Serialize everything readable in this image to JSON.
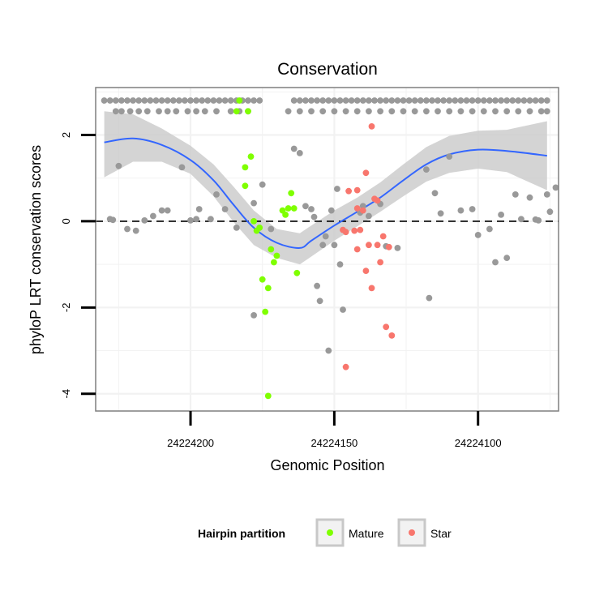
{
  "chart_data": {
    "type": "scatter",
    "title": "Conservation",
    "xlabel": "Genomic Position",
    "ylabel": "phyloP LRT conservation scores",
    "x_reversed": true,
    "xlim": [
      24224233,
      24224072
    ],
    "ylim": [
      -4.4,
      3.1
    ],
    "x_ticks": [
      24224200,
      24224150,
      24224100
    ],
    "x_tick_labels": [
      "24224200",
      "24224150",
      "24224100"
    ],
    "y_ticks": [
      -4,
      -2,
      0,
      2
    ],
    "y_tick_labels": [
      "-4",
      "-2",
      "0",
      "2"
    ],
    "reference_line": {
      "y": 0,
      "style": "dashed"
    },
    "grid": true,
    "legend": {
      "title": "Hairpin partition",
      "position": "bottom",
      "entries": [
        {
          "label": "Mature",
          "color": "#7FFF00"
        },
        {
          "label": "Star",
          "color": "#F8766D"
        }
      ]
    },
    "colors": {
      "other": "#999999",
      "smooth": "#3366FF",
      "ribbon": "#CCCCCC"
    },
    "series": [
      {
        "group": "other",
        "color": "#999999",
        "points": [
          [
            24224230,
            2.8
          ],
          [
            24224228,
            2.8
          ],
          [
            24224226,
            2.8
          ],
          [
            24224224,
            2.8
          ],
          [
            24224222,
            2.8
          ],
          [
            24224220,
            2.8
          ],
          [
            24224218,
            2.8
          ],
          [
            24224216,
            2.8
          ],
          [
            24224214,
            2.8
          ],
          [
            24224212,
            2.8
          ],
          [
            24224210,
            2.8
          ],
          [
            24224208,
            2.8
          ],
          [
            24224206,
            2.8
          ],
          [
            24224204,
            2.8
          ],
          [
            24224202,
            2.8
          ],
          [
            24224200,
            2.8
          ],
          [
            24224198,
            2.8
          ],
          [
            24224196,
            2.8
          ],
          [
            24224194,
            2.8
          ],
          [
            24224192,
            2.8
          ],
          [
            24224190,
            2.8
          ],
          [
            24224188,
            2.8
          ],
          [
            24224186,
            2.8
          ],
          [
            24224184,
            2.8
          ],
          [
            24224182,
            2.8
          ],
          [
            24224180,
            2.8
          ],
          [
            24224178,
            2.8
          ],
          [
            24224176,
            2.8
          ],
          [
            24224226,
            2.55
          ],
          [
            24224224,
            2.55
          ],
          [
            24224221,
            2.55
          ],
          [
            24224218,
            2.55
          ],
          [
            24224215,
            2.55
          ],
          [
            24224211,
            2.55
          ],
          [
            24224208,
            2.55
          ],
          [
            24224205,
            2.55
          ],
          [
            24224201,
            2.55
          ],
          [
            24224198,
            2.55
          ],
          [
            24224195,
            2.55
          ],
          [
            24224191,
            2.55
          ],
          [
            24224186,
            2.55
          ],
          [
            24224183,
            2.55
          ],
          [
            24224180,
            2.55
          ],
          [
            24224164,
            2.8
          ],
          [
            24224162,
            2.8
          ],
          [
            24224160,
            2.8
          ],
          [
            24224158,
            2.8
          ],
          [
            24224156,
            2.8
          ],
          [
            24224154,
            2.8
          ],
          [
            24224152,
            2.8
          ],
          [
            24224150,
            2.8
          ],
          [
            24224148,
            2.8
          ],
          [
            24224146,
            2.8
          ],
          [
            24224144,
            2.8
          ],
          [
            24224142,
            2.8
          ],
          [
            24224140,
            2.8
          ],
          [
            24224138,
            2.8
          ],
          [
            24224136,
            2.8
          ],
          [
            24224134,
            2.8
          ],
          [
            24224132,
            2.8
          ],
          [
            24224130,
            2.8
          ],
          [
            24224128,
            2.8
          ],
          [
            24224126,
            2.8
          ],
          [
            24224124,
            2.8
          ],
          [
            24224122,
            2.8
          ],
          [
            24224120,
            2.8
          ],
          [
            24224118,
            2.8
          ],
          [
            24224116,
            2.8
          ],
          [
            24224114,
            2.8
          ],
          [
            24224112,
            2.8
          ],
          [
            24224110,
            2.8
          ],
          [
            24224108,
            2.8
          ],
          [
            24224106,
            2.8
          ],
          [
            24224104,
            2.8
          ],
          [
            24224102,
            2.8
          ],
          [
            24224100,
            2.8
          ],
          [
            24224098,
            2.8
          ],
          [
            24224096,
            2.8
          ],
          [
            24224094,
            2.8
          ],
          [
            24224092,
            2.8
          ],
          [
            24224090,
            2.8
          ],
          [
            24224088,
            2.8
          ],
          [
            24224086,
            2.8
          ],
          [
            24224084,
            2.8
          ],
          [
            24224082,
            2.8
          ],
          [
            24224080,
            2.8
          ],
          [
            24224078,
            2.8
          ],
          [
            24224076,
            2.8
          ],
          [
            24224166,
            2.55
          ],
          [
            24224162,
            2.55
          ],
          [
            24224158,
            2.55
          ],
          [
            24224154,
            2.55
          ],
          [
            24224150,
            2.55
          ],
          [
            24224146,
            2.55
          ],
          [
            24224142,
            2.55
          ],
          [
            24224138,
            2.55
          ],
          [
            24224134,
            2.55
          ],
          [
            24224130,
            2.55
          ],
          [
            24224126,
            2.55
          ],
          [
            24224122,
            2.55
          ],
          [
            24224118,
            2.55
          ],
          [
            24224114,
            2.55
          ],
          [
            24224110,
            2.55
          ],
          [
            24224106,
            2.55
          ],
          [
            24224102,
            2.55
          ],
          [
            24224098,
            2.55
          ],
          [
            24224094,
            2.55
          ],
          [
            24224090,
            2.55
          ],
          [
            24224086,
            2.55
          ],
          [
            24224082,
            2.55
          ],
          [
            24224078,
            2.55
          ],
          [
            24224076,
            2.55
          ],
          [
            24224228,
            0.05
          ],
          [
            24224227,
            0.03
          ],
          [
            24224225,
            1.28
          ],
          [
            24224222,
            -0.18
          ],
          [
            24224219,
            -0.22
          ],
          [
            24224216,
            0.02
          ],
          [
            24224213,
            0.12
          ],
          [
            24224210,
            0.25
          ],
          [
            24224208,
            0.25
          ],
          [
            24224203,
            1.25
          ],
          [
            24224200,
            0.02
          ],
          [
            24224198,
            0.05
          ],
          [
            24224197,
            0.28
          ],
          [
            24224193,
            0.05
          ],
          [
            24224191,
            0.62
          ],
          [
            24224188,
            0.28
          ],
          [
            24224184,
            -0.15
          ],
          [
            24224178,
            0.42
          ],
          [
            24224175,
            0.85
          ],
          [
            24224164,
            1.68
          ],
          [
            24224162,
            1.58
          ],
          [
            24224160,
            0.35
          ],
          [
            24224158,
            0.28
          ],
          [
            24224157,
            0.1
          ],
          [
            24224156,
            -1.5
          ],
          [
            24224155,
            -1.85
          ],
          [
            24224154,
            -0.55
          ],
          [
            24224153,
            -0.35
          ],
          [
            24224152,
            -3.0
          ],
          [
            24224151,
            0.25
          ],
          [
            24224150,
            -0.55
          ],
          [
            24224149,
            0.75
          ],
          [
            24224148,
            -1.0
          ],
          [
            24224147,
            -2.05
          ],
          [
            24224141,
            0.2
          ],
          [
            24224140,
            0.35
          ],
          [
            24224138,
            0.12
          ],
          [
            24224134,
            0.4
          ],
          [
            24224132,
            -0.58
          ],
          [
            24224128,
            -0.62
          ],
          [
            24224118,
            1.2
          ],
          [
            24224117,
            -1.78
          ],
          [
            24224115,
            0.65
          ],
          [
            24224113,
            0.18
          ],
          [
            24224110,
            1.5
          ],
          [
            24224106,
            0.25
          ],
          [
            24224102,
            0.28
          ],
          [
            24224100,
            -0.32
          ],
          [
            24224096,
            -0.18
          ],
          [
            24224094,
            -0.95
          ],
          [
            24224092,
            0.15
          ],
          [
            24224090,
            -0.85
          ],
          [
            24224087,
            0.62
          ],
          [
            24224085,
            0.05
          ],
          [
            24224082,
            0.55
          ],
          [
            24224080,
            0.04
          ],
          [
            24224079,
            0.02
          ],
          [
            24224076,
            0.62
          ],
          [
            24224075,
            0.22
          ],
          [
            24224073,
            0.78
          ],
          [
            24224178,
            -2.18
          ],
          [
            24224172,
            -0.18
          ]
        ]
      },
      {
        "group": "Mature",
        "color": "#7FFF00",
        "points": [
          [
            24224183,
            2.8
          ],
          [
            24224184,
            2.55
          ],
          [
            24224180,
            2.55
          ],
          [
            24224181,
            1.25
          ],
          [
            24224179,
            1.5
          ],
          [
            24224181,
            0.82
          ],
          [
            24224178,
            0.0
          ],
          [
            24224177,
            -0.22
          ],
          [
            24224176,
            -0.15
          ],
          [
            24224175,
            -1.35
          ],
          [
            24224173,
            -1.55
          ],
          [
            24224172,
            -0.65
          ],
          [
            24224171,
            -0.95
          ],
          [
            24224170,
            -0.8
          ],
          [
            24224168,
            0.25
          ],
          [
            24224167,
            0.15
          ],
          [
            24224166,
            0.3
          ],
          [
            24224165,
            0.65
          ],
          [
            24224164,
            0.3
          ],
          [
            24224163,
            -1.2
          ],
          [
            24224174,
            -2.1
          ],
          [
            24224173,
            -4.05
          ]
        ]
      },
      {
        "group": "Star",
        "color": "#F8766D",
        "points": [
          [
            24224137,
            2.2
          ],
          [
            24224139,
            1.12
          ],
          [
            24224136,
            0.52
          ],
          [
            24224135,
            0.48
          ],
          [
            24224145,
            0.7
          ],
          [
            24224142,
            0.72
          ],
          [
            24224142,
            0.3
          ],
          [
            24224140,
            0.25
          ],
          [
            24224147,
            -0.2
          ],
          [
            24224146,
            -0.25
          ],
          [
            24224143,
            -0.22
          ],
          [
            24224141,
            -0.2
          ],
          [
            24224138,
            -0.55
          ],
          [
            24224135,
            -0.55
          ],
          [
            24224133,
            -0.35
          ],
          [
            24224131,
            -0.6
          ],
          [
            24224142,
            -0.65
          ],
          [
            24224139,
            -1.15
          ],
          [
            24224137,
            -1.55
          ],
          [
            24224134,
            -0.95
          ],
          [
            24224132,
            -2.45
          ],
          [
            24224130,
            -2.65
          ],
          [
            24224146,
            -3.38
          ]
        ]
      }
    ],
    "smooth_curve": [
      [
        24224230,
        1.83
      ],
      [
        24224220,
        1.92
      ],
      [
        24224210,
        1.77
      ],
      [
        24224200,
        1.42
      ],
      [
        24224192,
        0.95
      ],
      [
        24224185,
        0.38
      ],
      [
        24224178,
        -0.15
      ],
      [
        24224170,
        -0.5
      ],
      [
        24224162,
        -0.62
      ],
      [
        24224158,
        -0.45
      ],
      [
        24224150,
        -0.1
      ],
      [
        24224142,
        0.22
      ],
      [
        24224134,
        0.55
      ],
      [
        24224126,
        0.95
      ],
      [
        24224118,
        1.32
      ],
      [
        24224110,
        1.55
      ],
      [
        24224100,
        1.66
      ],
      [
        24224090,
        1.63
      ],
      [
        24224076,
        1.52
      ]
    ],
    "ribbon_upper": [
      [
        24224230,
        2.55
      ],
      [
        24224220,
        2.48
      ],
      [
        24224210,
        2.15
      ],
      [
        24224200,
        1.75
      ],
      [
        24224192,
        1.32
      ],
      [
        24224185,
        0.8
      ],
      [
        24224178,
        0.25
      ],
      [
        24224170,
        -0.18
      ],
      [
        24224162,
        -0.28
      ],
      [
        24224158,
        -0.1
      ],
      [
        24224150,
        0.25
      ],
      [
        24224142,
        0.55
      ],
      [
        24224134,
        0.9
      ],
      [
        24224126,
        1.32
      ],
      [
        24224118,
        1.72
      ],
      [
        24224110,
        1.98
      ],
      [
        24224100,
        2.1
      ],
      [
        24224090,
        2.12
      ],
      [
        24224076,
        2.32
      ]
    ],
    "ribbon_lower": [
      [
        24224230,
        1.02
      ],
      [
        24224220,
        1.38
      ],
      [
        24224210,
        1.38
      ],
      [
        24224200,
        1.1
      ],
      [
        24224192,
        0.58
      ],
      [
        24224185,
        -0.02
      ],
      [
        24224178,
        -0.55
      ],
      [
        24224170,
        -0.85
      ],
      [
        24224162,
        -1.0
      ],
      [
        24224158,
        -0.82
      ],
      [
        24224150,
        -0.45
      ],
      [
        24224142,
        -0.12
      ],
      [
        24224134,
        0.22
      ],
      [
        24224126,
        0.58
      ],
      [
        24224118,
        0.92
      ],
      [
        24224110,
        1.12
      ],
      [
        24224100,
        1.22
      ],
      [
        24224090,
        1.14
      ],
      [
        24224076,
        0.72
      ]
    ]
  }
}
